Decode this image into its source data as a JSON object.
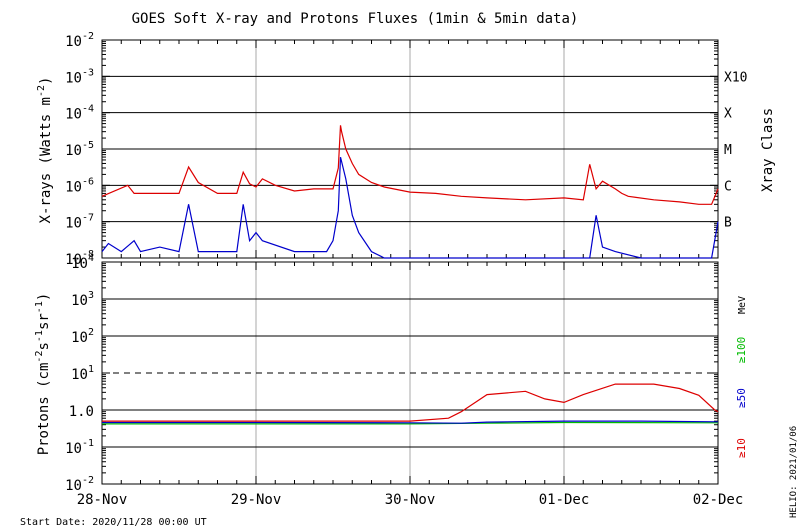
{
  "title": "GOES Soft X-ray and Protons Fluxes   (1min & 5min data)",
  "footer": {
    "start_date": "Start Date: 2020/11/28 00:00 UT",
    "credit": "HELIO: 2021/01/06"
  },
  "colors": {
    "xray_long": "#dd0000",
    "xray_short": "#0000cc",
    "proton_10": "#dd0000",
    "proton_50": "#0000cc",
    "proton_100": "#00bb00",
    "axis": "#000000",
    "gridline": "#aaaaaa"
  },
  "chart_data": [
    {
      "type": "line",
      "panel": "xray",
      "ylabel": "X-rays (Watts m",
      "ylabel_sup": "-2",
      "ylabel_close": ")",
      "yscale": "log",
      "ylim": [
        1e-08,
        0.01
      ],
      "ytick_labels": [
        {
          "base": "10",
          "exp": "-2",
          "value": 0.01
        },
        {
          "base": "10",
          "exp": "-3",
          "value": 0.001
        },
        {
          "base": "10",
          "exp": "-4",
          "value": 0.0001
        },
        {
          "base": "10",
          "exp": "-5",
          "value": 1e-05
        },
        {
          "base": "10",
          "exp": "-6",
          "value": 1e-06
        },
        {
          "base": "10",
          "exp": "-7",
          "value": 1e-07
        },
        {
          "base": "10",
          "exp": "-8",
          "value": 1e-08
        }
      ],
      "class_axis_label": "Xray Class",
      "class_labels": [
        {
          "label": "X10",
          "value": 0.001
        },
        {
          "label": "X",
          "value": 0.0001
        },
        {
          "label": "M",
          "value": 1e-05
        },
        {
          "label": "C",
          "value": 1e-06
        },
        {
          "label": "B",
          "value": 1e-07
        }
      ],
      "hlines": [
        0.001,
        0.0001,
        1e-05,
        1e-06,
        1e-07
      ],
      "xlim": [
        "2020-11-28",
        "2020-12-02"
      ],
      "series": [
        {
          "key": "long",
          "x": [
            "2020-11-28 00:00",
            "2020-11-28 04:00",
            "2020-11-28 05:00",
            "2020-11-28 06:00",
            "2020-11-28 09:00",
            "2020-11-28 12:00",
            "2020-11-28 13:30",
            "2020-11-28 15:00",
            "2020-11-28 18:00",
            "2020-11-28 21:00",
            "2020-11-28 22:00",
            "2020-11-28 23:00",
            "2020-11-29 00:00",
            "2020-11-29 01:00",
            "2020-11-29 03:00",
            "2020-11-29 06:00",
            "2020-11-29 09:00",
            "2020-11-29 12:00",
            "2020-11-29 12:50",
            "2020-11-29 13:10",
            "2020-11-29 13:20",
            "2020-11-29 14:00",
            "2020-11-29 15:00",
            "2020-11-29 16:00",
            "2020-11-29 18:00",
            "2020-11-29 20:00",
            "2020-11-30 00:00",
            "2020-11-30 04:00",
            "2020-11-30 08:00",
            "2020-11-30 12:00",
            "2020-11-30 18:00",
            "2020-12-01 00:00",
            "2020-12-01 03:00",
            "2020-12-01 04:00",
            "2020-12-01 05:00",
            "2020-12-01 06:00",
            "2020-12-01 08:00",
            "2020-12-01 09:00",
            "2020-12-01 10:00",
            "2020-12-01 14:00",
            "2020-12-01 18:00",
            "2020-12-01 21:00",
            "2020-12-01 23:00",
            "2020-12-02 00:00"
          ],
          "y": [
            5e-07,
            1e-06,
            6e-07,
            6e-07,
            6e-07,
            6e-07,
            3.2e-06,
            1.2e-06,
            6e-07,
            6e-07,
            2.3e-06,
            1.1e-06,
            9e-07,
            1.5e-06,
            1e-06,
            7e-07,
            8e-07,
            8e-07,
            3e-06,
            4.5e-05,
            3e-05,
            1e-05,
            4e-06,
            2e-06,
            1.2e-06,
            9e-07,
            6.5e-07,
            6e-07,
            5e-07,
            4.5e-07,
            4e-07,
            4.5e-07,
            4e-07,
            3.8e-06,
            8e-07,
            1.3e-06,
            8e-07,
            6e-07,
            5e-07,
            4e-07,
            3.5e-07,
            3e-07,
            3e-07,
            8e-07
          ]
        },
        {
          "key": "short",
          "x": [
            "2020-11-28 00:00",
            "2020-11-28 01:00",
            "2020-11-28 03:00",
            "2020-11-28 05:00",
            "2020-11-28 06:00",
            "2020-11-28 09:00",
            "2020-11-28 12:00",
            "2020-11-28 13:30",
            "2020-11-28 15:00",
            "2020-11-28 18:00",
            "2020-11-28 21:00",
            "2020-11-28 22:00",
            "2020-11-28 23:00",
            "2020-11-29 00:00",
            "2020-11-29 01:00",
            "2020-11-29 06:00",
            "2020-11-29 11:00",
            "2020-11-29 12:00",
            "2020-11-29 12:50",
            "2020-11-29 13:10",
            "2020-11-29 14:00",
            "2020-11-29 15:00",
            "2020-11-29 16:00",
            "2020-11-29 18:00",
            "2020-11-29 20:00",
            "2020-11-30 00:00",
            "2020-11-30 12:00",
            "2020-12-01 00:00",
            "2020-12-01 04:00",
            "2020-12-01 05:00",
            "2020-12-01 06:00",
            "2020-12-01 08:00",
            "2020-12-01 12:00",
            "2020-12-01 23:00",
            "2020-12-02 00:00"
          ],
          "y": [
            1.5e-08,
            2.5e-08,
            1.5e-08,
            3e-08,
            1.5e-08,
            2e-08,
            1.5e-08,
            3e-07,
            1.5e-08,
            1.5e-08,
            1.5e-08,
            3e-07,
            3e-08,
            5e-08,
            3e-08,
            1.5e-08,
            1.5e-08,
            3e-08,
            2e-07,
            6e-06,
            1.5e-06,
            1.5e-07,
            5e-08,
            1.5e-08,
            1e-08,
            1e-08,
            1e-08,
            1e-08,
            1e-08,
            1.5e-07,
            2e-08,
            1.5e-08,
            1e-08,
            1e-08,
            1e-07
          ]
        }
      ]
    },
    {
      "type": "line",
      "panel": "protons",
      "ylabel": "Protons (cm",
      "ylabel_parts": [
        "-2",
        "s",
        "-1",
        "sr",
        "-1",
        ")"
      ],
      "yscale": "log",
      "ylim": [
        0.01,
        10000
      ],
      "ytick_labels": [
        {
          "base": "10",
          "exp": "4",
          "value": 10000.0
        },
        {
          "base": "10",
          "exp": "3",
          "value": 1000.0
        },
        {
          "base": "10",
          "exp": "2",
          "value": 100.0
        },
        {
          "base": "10",
          "exp": "1",
          "value": 10.0
        },
        {
          "base": "1.0",
          "exp": "",
          "value": 1
        },
        {
          "base": "10",
          "exp": "-1",
          "value": 0.1
        },
        {
          "base": "10",
          "exp": "-2",
          "value": 0.01
        }
      ],
      "hlines": [
        1000,
        100,
        1,
        0.1
      ],
      "dashed_hline": 10,
      "unit_label": "MeV",
      "energy_labels": [
        {
          "label": "≥100",
          "key": "p100"
        },
        {
          "label": "≥50",
          "key": "p50"
        },
        {
          "label": "≥10",
          "key": "p10"
        }
      ],
      "xlim": [
        "2020-11-28",
        "2020-12-02"
      ],
      "series": [
        {
          "key": "p10",
          "x": [
            "2020-11-28 00:00",
            "2020-11-29 00:00",
            "2020-11-30 00:00",
            "2020-11-30 06:00",
            "2020-11-30 08:00",
            "2020-11-30 12:00",
            "2020-11-30 18:00",
            "2020-11-30 21:00",
            "2020-12-01 00:00",
            "2020-12-01 03:00",
            "2020-12-01 08:00",
            "2020-12-01 14:00",
            "2020-12-01 18:00",
            "2020-12-01 21:00",
            "2020-12-01 23:30",
            "2020-12-02 00:00"
          ],
          "y": [
            0.5,
            0.5,
            0.5,
            0.6,
            0.9,
            2.6,
            3.2,
            2.0,
            1.6,
            2.6,
            5.0,
            5.0,
            3.8,
            2.5,
            1.0,
            0.9
          ]
        },
        {
          "key": "p50",
          "x": [
            "2020-11-28 00:00",
            "2020-11-29 00:00",
            "2020-11-30 00:00",
            "2020-11-30 08:00",
            "2020-11-30 12:00",
            "2020-12-01 00:00",
            "2020-12-01 12:00",
            "2020-12-02 00:00"
          ],
          "y": [
            0.46,
            0.46,
            0.45,
            0.44,
            0.47,
            0.5,
            0.5,
            0.48
          ]
        },
        {
          "key": "p100",
          "x": [
            "2020-11-28 00:00",
            "2020-11-29 00:00",
            "2020-11-30 00:00",
            "2020-11-30 12:00",
            "2020-12-01 00:00",
            "2020-12-02 00:00"
          ],
          "y": [
            0.42,
            0.42,
            0.42,
            0.44,
            0.46,
            0.45
          ]
        }
      ]
    }
  ],
  "x_axis": {
    "tick_labels": [
      {
        "label": "28-Nov",
        "value": "2020-11-28"
      },
      {
        "label": "29-Nov",
        "value": "2020-11-29"
      },
      {
        "label": "30-Nov",
        "value": "2020-11-30"
      },
      {
        "label": "01-Dec",
        "value": "2020-12-01"
      },
      {
        "label": "02-Dec",
        "value": "2020-12-02"
      }
    ]
  }
}
